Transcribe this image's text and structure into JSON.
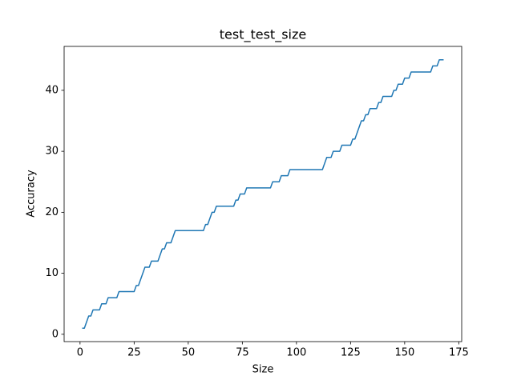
{
  "chart_data": {
    "type": "line",
    "title": "test_test_size",
    "xlabel": "Size",
    "ylabel": "Accuracy",
    "x": [
      1,
      2,
      3,
      4,
      5,
      6,
      7,
      8,
      9,
      10,
      11,
      12,
      13,
      14,
      15,
      16,
      17,
      18,
      19,
      20,
      21,
      22,
      23,
      24,
      25,
      26,
      27,
      28,
      29,
      30,
      31,
      32,
      33,
      34,
      35,
      36,
      37,
      38,
      39,
      40,
      41,
      42,
      43,
      44,
      45,
      46,
      47,
      48,
      49,
      50,
      51,
      52,
      53,
      54,
      55,
      56,
      57,
      58,
      59,
      60,
      61,
      62,
      63,
      64,
      65,
      66,
      67,
      68,
      69,
      70,
      71,
      72,
      73,
      74,
      75,
      76,
      77,
      78,
      79,
      80,
      81,
      82,
      83,
      84,
      85,
      86,
      87,
      88,
      89,
      90,
      91,
      92,
      93,
      94,
      95,
      96,
      97,
      98,
      99,
      100,
      101,
      102,
      103,
      104,
      105,
      106,
      107,
      108,
      109,
      110,
      111,
      112,
      113,
      114,
      115,
      116,
      117,
      118,
      119,
      120,
      121,
      122,
      123,
      124,
      125,
      126,
      127,
      128,
      129,
      130,
      131,
      132,
      133,
      134,
      135,
      136,
      137,
      138,
      139,
      140,
      141,
      142,
      143,
      144,
      145,
      146,
      147,
      148,
      149,
      150,
      151,
      152,
      153,
      154,
      155,
      156,
      157,
      158,
      159,
      160,
      161,
      162,
      163,
      164,
      165,
      166,
      167,
      168
    ],
    "series": [
      {
        "name": "accuracy",
        "color": "#1f77b4",
        "values": [
          1,
          1,
          2,
          3,
          3,
          4,
          4,
          4,
          4,
          5,
          5,
          5,
          6,
          6,
          6,
          6,
          6,
          7,
          7,
          7,
          7,
          7,
          7,
          7,
          7,
          8,
          8,
          9,
          10,
          11,
          11,
          11,
          12,
          12,
          12,
          12,
          13,
          14,
          14,
          15,
          15,
          15,
          16,
          17,
          17,
          17,
          17,
          17,
          17,
          17,
          17,
          17,
          17,
          17,
          17,
          17,
          17,
          18,
          18,
          19,
          20,
          20,
          21,
          21,
          21,
          21,
          21,
          21,
          21,
          21,
          21,
          22,
          22,
          23,
          23,
          23,
          24,
          24,
          24,
          24,
          24,
          24,
          24,
          24,
          24,
          24,
          24,
          24,
          25,
          25,
          25,
          25,
          26,
          26,
          26,
          26,
          27,
          27,
          27,
          27,
          27,
          27,
          27,
          27,
          27,
          27,
          27,
          27,
          27,
          27,
          27,
          27,
          28,
          29,
          29,
          29,
          30,
          30,
          30,
          30,
          31,
          31,
          31,
          31,
          31,
          32,
          32,
          33,
          34,
          35,
          35,
          36,
          36,
          37,
          37,
          37,
          37,
          38,
          38,
          39,
          39,
          39,
          39,
          39,
          40,
          40,
          41,
          41,
          41,
          42,
          42,
          42,
          43,
          43,
          43,
          43,
          43,
          43,
          43,
          43,
          43,
          43,
          44,
          44,
          44,
          45,
          45,
          45
        ]
      }
    ],
    "xlim": [
      -7.35,
      176.35
    ],
    "ylim": [
      -1.2,
      47.2
    ],
    "xticks": [
      0,
      25,
      50,
      75,
      100,
      125,
      150,
      175
    ],
    "yticks": [
      0,
      10,
      20,
      30,
      40
    ]
  }
}
